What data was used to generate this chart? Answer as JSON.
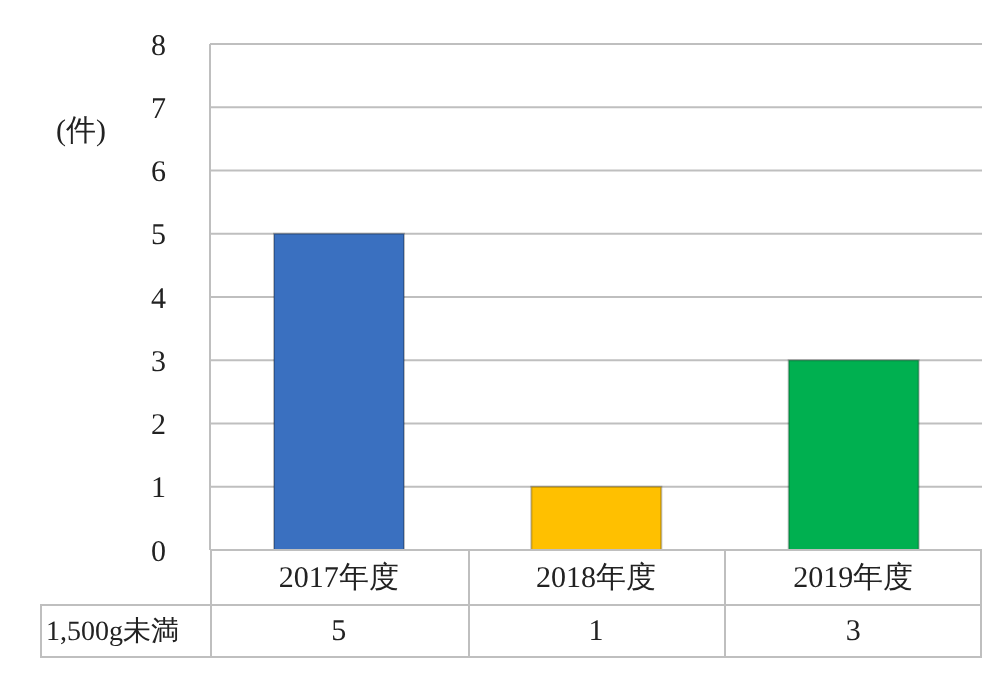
{
  "chart_data": {
    "type": "bar",
    "ylabel": "(件)",
    "categories": [
      "2017年度",
      "2018年度",
      "2019年度"
    ],
    "series": [
      {
        "name": "1,500g未満",
        "colors": [
          "#3a70c0",
          "#ffc000",
          "#00b050"
        ],
        "values": [
          5,
          1,
          3
        ]
      }
    ],
    "ylim": [
      0,
      8
    ],
    "yticks": [
      0,
      1,
      2,
      3,
      4,
      5,
      6,
      7,
      8
    ],
    "grid": "y",
    "data_labels": true
  }
}
